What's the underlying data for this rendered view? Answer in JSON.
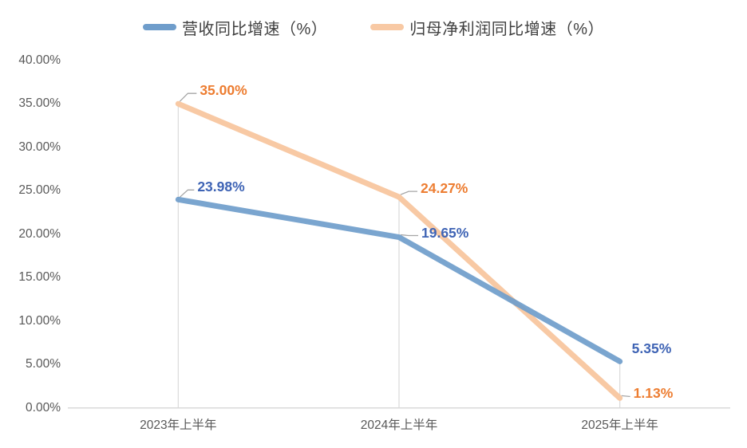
{
  "chart_data": {
    "type": "line",
    "categories": [
      "2023年上半年",
      "2024年上半年",
      "2025年上半年"
    ],
    "series": [
      {
        "name": "营收同比增速（%）",
        "values": [
          23.98,
          19.65,
          5.35
        ],
        "labels": [
          "23.98%",
          "19.65%",
          "5.35%"
        ],
        "line_color": "#6F9DCB",
        "label_color": "#3F64B5"
      },
      {
        "name": "归母净利润同比增速（%）",
        "values": [
          35.0,
          24.27,
          1.13
        ],
        "labels": [
          "35.00%",
          "24.27%",
          "1.13%"
        ],
        "line_color": "#F8C9A4",
        "label_color": "#ED7D31"
      }
    ],
    "yticks": [
      "0.00%",
      "5.00%",
      "10.00%",
      "15.00%",
      "20.00%",
      "25.00%",
      "30.00%",
      "35.00%",
      "40.00%"
    ],
    "ylim": [
      0,
      40
    ],
    "ytick_step": 5,
    "xlabel": "",
    "ylabel": "",
    "title": "",
    "grid": "off",
    "drop_lines": true,
    "legend_position": "top"
  },
  "colors": {
    "axis_line": "#D9D9D9",
    "drop_line": "#D9D9D9",
    "leader_line": "#A6A6A6",
    "tick_text": "#595959",
    "legend_text": "#404040",
    "background": "#FFFFFF"
  }
}
